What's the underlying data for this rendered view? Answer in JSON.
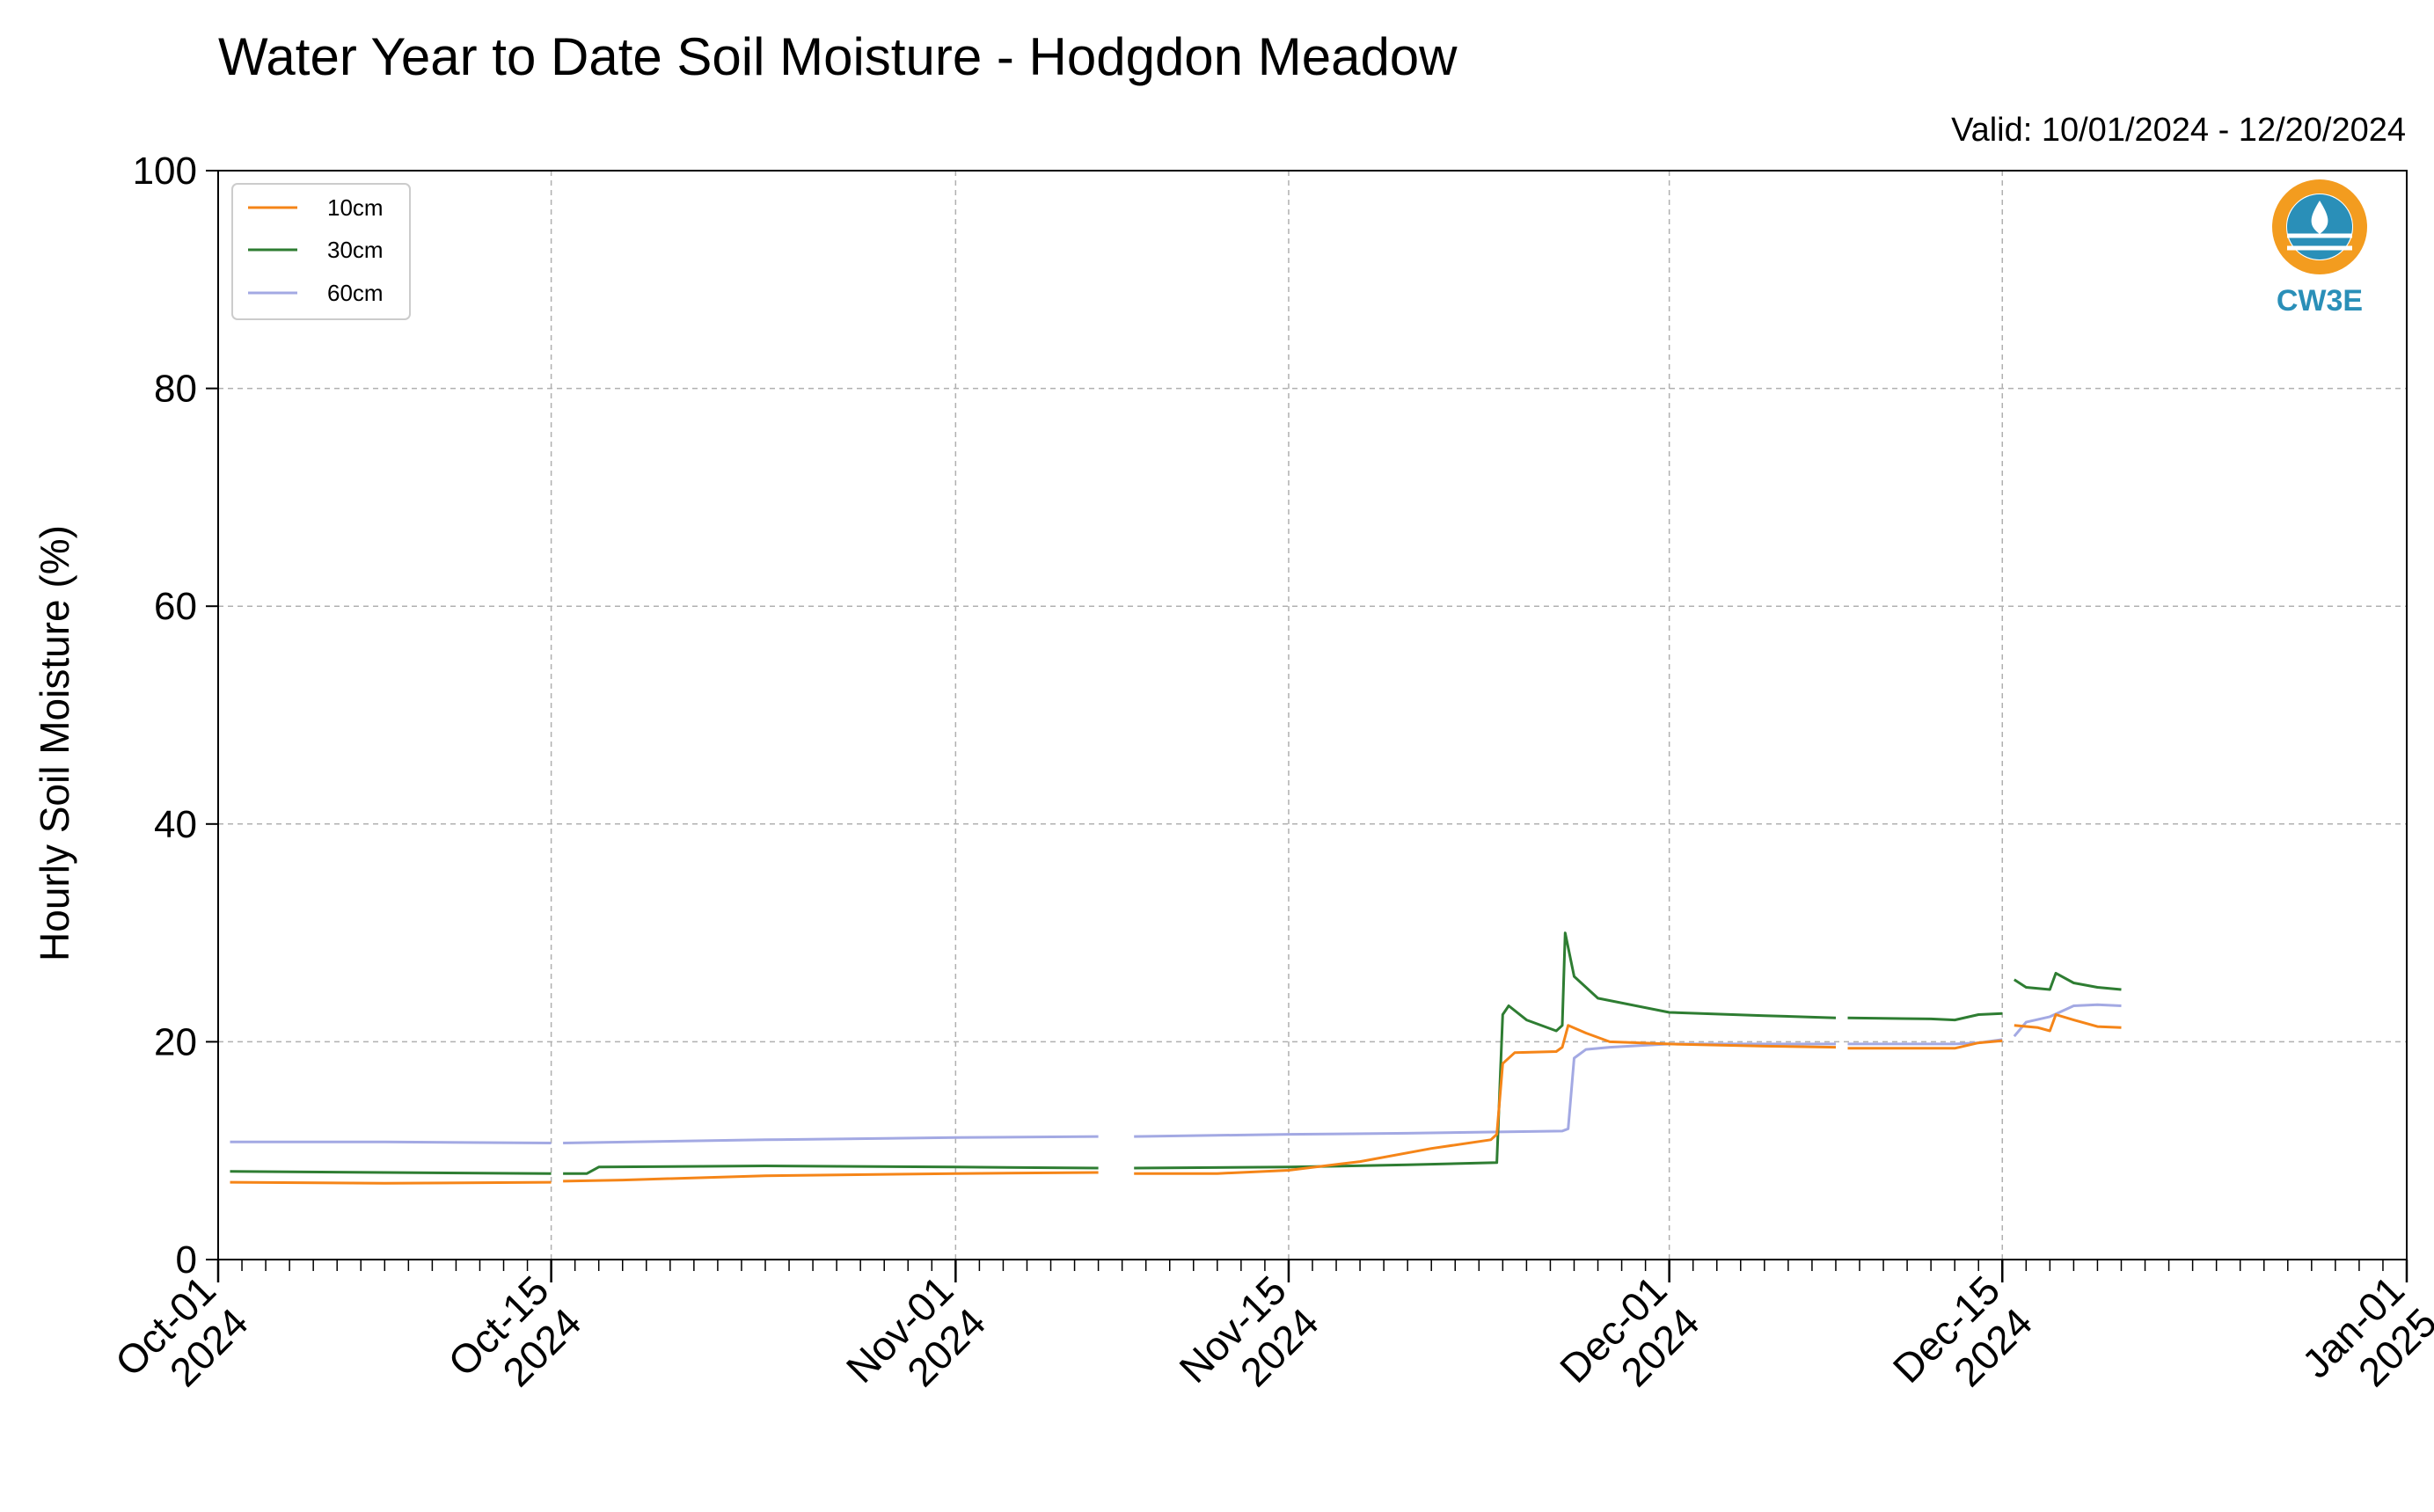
{
  "chart_data": {
    "type": "line",
    "title": "Water Year to Date Soil Moisture - Hodgdon Meadow",
    "subtitle": "Valid: 10/01/2024 - 12/20/2024",
    "xlabel": "",
    "ylabel": "Hourly Soil Moisture (%)",
    "ylim": [
      0,
      100
    ],
    "xlim": [
      "2024-10-01",
      "2025-01-01"
    ],
    "grid": true,
    "legend_position": "top-left",
    "y_ticks": [
      "0",
      "20",
      "40",
      "60",
      "80",
      "100"
    ],
    "x_ticks": [
      {
        "date": "2024-10-01",
        "line1": "Oct-01",
        "line2": "2024"
      },
      {
        "date": "2024-10-15",
        "line1": "Oct-15",
        "line2": "2024"
      },
      {
        "date": "2024-11-01",
        "line1": "Nov-01",
        "line2": "2024"
      },
      {
        "date": "2024-11-15",
        "line1": "Nov-15",
        "line2": "2024"
      },
      {
        "date": "2024-12-01",
        "line1": "Dec-01",
        "line2": "2024"
      },
      {
        "date": "2024-12-15",
        "line1": "Dec-15",
        "line2": "2024"
      },
      {
        "date": "2025-01-01",
        "line1": "Jan-01",
        "line2": "2025"
      }
    ],
    "series": [
      {
        "name": "10cm",
        "color": "#f58518",
        "segments": [
          [
            [
              "2024-10-01 12:00",
              7.1
            ],
            [
              "2024-10-08",
              7.0
            ],
            [
              "2024-10-15",
              7.1
            ]
          ],
          [
            [
              "2024-10-15 12:00",
              7.2
            ],
            [
              "2024-10-18",
              7.3
            ],
            [
              "2024-10-24",
              7.7
            ],
            [
              "2024-11-01",
              7.9
            ],
            [
              "2024-11-07",
              8.0
            ]
          ],
          [
            [
              "2024-11-08 12:00",
              7.9
            ],
            [
              "2024-11-12",
              7.9
            ],
            [
              "2024-11-15",
              8.2
            ],
            [
              "2024-11-18",
              9.0
            ],
            [
              "2024-11-21",
              10.2
            ],
            [
              "2024-11-23 12:00",
              11.0
            ],
            [
              "2024-11-23 18:00",
              11.5
            ],
            [
              "2024-11-24",
              18.0
            ],
            [
              "2024-11-24 12:00",
              19.0
            ],
            [
              "2024-11-26 06:00",
              19.1
            ],
            [
              "2024-11-26 12:00",
              19.5
            ],
            [
              "2024-11-26 18:00",
              21.5
            ],
            [
              "2024-11-27 12:00",
              20.8
            ],
            [
              "2024-11-28 12:00",
              20.0
            ],
            [
              "2024-12-01",
              19.8
            ],
            [
              "2024-12-05",
              19.6
            ],
            [
              "2024-12-08",
              19.5
            ]
          ],
          [
            [
              "2024-12-08 12:00",
              19.4
            ],
            [
              "2024-12-12",
              19.4
            ],
            [
              "2024-12-13",
              19.4
            ],
            [
              "2024-12-14",
              19.9
            ],
            [
              "2024-12-15",
              20.1
            ]
          ],
          [
            [
              "2024-12-15 12:00",
              21.5
            ],
            [
              "2024-12-16 12:00",
              21.3
            ],
            [
              "2024-12-17",
              21.0
            ],
            [
              "2024-12-17 06:00",
              22.5
            ],
            [
              "2024-12-18",
              22.0
            ],
            [
              "2024-12-19",
              21.4
            ],
            [
              "2024-12-20",
              21.3
            ]
          ]
        ]
      },
      {
        "name": "30cm",
        "color": "#2e7d32",
        "segments": [
          [
            [
              "2024-10-01 12:00",
              8.1
            ],
            [
              "2024-10-08",
              8.0
            ],
            [
              "2024-10-15",
              7.9
            ]
          ],
          [
            [
              "2024-10-15 12:00",
              7.9
            ],
            [
              "2024-10-16 12:00",
              7.9
            ],
            [
              "2024-10-17",
              8.5
            ],
            [
              "2024-10-24",
              8.6
            ],
            [
              "2024-11-01",
              8.5
            ],
            [
              "2024-11-07",
              8.4
            ]
          ],
          [
            [
              "2024-11-08 12:00",
              8.4
            ],
            [
              "2024-11-15",
              8.5
            ],
            [
              "2024-11-20",
              8.7
            ],
            [
              "2024-11-23 18:00",
              8.9
            ],
            [
              "2024-11-24",
              22.5
            ],
            [
              "2024-11-24 06:00",
              23.3
            ],
            [
              "2024-11-25",
              22.0
            ],
            [
              "2024-11-26 06:00",
              21.0
            ],
            [
              "2024-11-26 12:00",
              21.5
            ],
            [
              "2024-11-26 15:00",
              30.0
            ],
            [
              "2024-11-27",
              26.0
            ],
            [
              "2024-11-28",
              24.0
            ],
            [
              "2024-12-01",
              22.7
            ],
            [
              "2024-12-05",
              22.4
            ],
            [
              "2024-12-08",
              22.2
            ]
          ],
          [
            [
              "2024-12-08 12:00",
              22.2
            ],
            [
              "2024-12-12",
              22.1
            ],
            [
              "2024-12-13",
              22.0
            ],
            [
              "2024-12-14",
              22.5
            ],
            [
              "2024-12-15",
              22.6
            ]
          ],
          [
            [
              "2024-12-15 12:00",
              25.7
            ],
            [
              "2024-12-16",
              25.0
            ],
            [
              "2024-12-17",
              24.8
            ],
            [
              "2024-12-17 06:00",
              26.3
            ],
            [
              "2024-12-18",
              25.4
            ],
            [
              "2024-12-19",
              25.0
            ],
            [
              "2024-12-20",
              24.8
            ]
          ]
        ]
      },
      {
        "name": "60cm",
        "color": "#a3a9e3",
        "segments": [
          [
            [
              "2024-10-01 12:00",
              10.8
            ],
            [
              "2024-10-08",
              10.8
            ],
            [
              "2024-10-15",
              10.7
            ]
          ],
          [
            [
              "2024-10-15 12:00",
              10.7
            ],
            [
              "2024-10-24",
              11.0
            ],
            [
              "2024-11-01",
              11.2
            ],
            [
              "2024-11-07",
              11.3
            ]
          ],
          [
            [
              "2024-11-08 12:00",
              11.3
            ],
            [
              "2024-11-15",
              11.5
            ],
            [
              "2024-11-20",
              11.6
            ],
            [
              "2024-11-26 12:00",
              11.8
            ],
            [
              "2024-11-26 18:00",
              12.0
            ],
            [
              "2024-11-27",
              18.5
            ],
            [
              "2024-11-27 12:00",
              19.3
            ],
            [
              "2024-11-28 12:00",
              19.5
            ],
            [
              "2024-12-01",
              19.8
            ],
            [
              "2024-12-05",
              19.8
            ],
            [
              "2024-12-08",
              19.8
            ]
          ],
          [
            [
              "2024-12-08 12:00",
              19.8
            ],
            [
              "2024-12-12",
              19.8
            ],
            [
              "2024-12-13",
              19.8
            ],
            [
              "2024-12-14",
              19.9
            ],
            [
              "2024-12-15",
              20.2
            ]
          ],
          [
            [
              "2024-12-15 12:00",
              20.5
            ],
            [
              "2024-12-16",
              21.8
            ],
            [
              "2024-12-17",
              22.3
            ],
            [
              "2024-12-18",
              23.3
            ],
            [
              "2024-12-19",
              23.4
            ],
            [
              "2024-12-20",
              23.3
            ]
          ]
        ]
      }
    ]
  },
  "logo": {
    "text": "CW3E",
    "ring_color": "#f39c1f",
    "water_color": "#2a8fb8"
  }
}
